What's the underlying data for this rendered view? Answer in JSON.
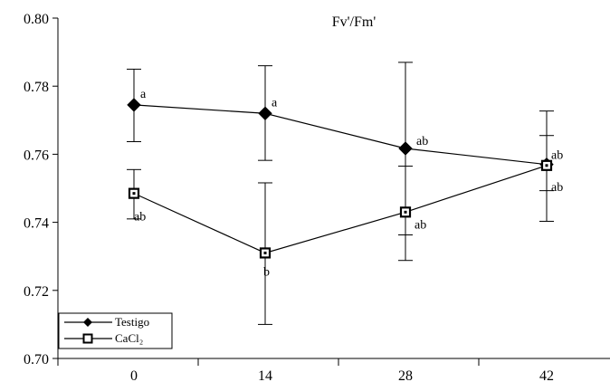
{
  "chart_data": {
    "type": "line",
    "title": "Fv'/Fm'",
    "xlabel": "",
    "ylabel": "",
    "categories": [
      "0",
      "14",
      "28",
      "42"
    ],
    "x": [
      0,
      14,
      28,
      42
    ],
    "ylim": [
      0.7,
      0.8
    ],
    "yticks": [
      0.7,
      0.72,
      0.74,
      0.76,
      0.78,
      0.8
    ],
    "ytick_labels": [
      "0.70",
      "0.72",
      "0.74",
      "0.76",
      "0.78",
      "0.80"
    ],
    "grid": false,
    "legend_position": "bottom-left",
    "series": [
      {
        "name": "Testigo",
        "marker": "filled-diamond",
        "values": [
          0.7745,
          0.772,
          0.7617,
          0.757
        ],
        "err_low": [
          0.7637,
          0.7582,
          0.7288,
          0.7403
        ],
        "err_high": [
          0.785,
          0.786,
          0.787,
          0.7727
        ],
        "labels": [
          "a",
          "a",
          "ab",
          "ab"
        ]
      },
      {
        "name": "CaCl₂",
        "marker": "open-square",
        "values": [
          0.7485,
          0.731,
          0.743,
          0.7567
        ],
        "err_low": [
          0.741,
          0.71,
          0.7363,
          0.7493
        ],
        "err_high": [
          0.7555,
          0.7516,
          0.7565,
          0.7655
        ],
        "labels": [
          "ab",
          "b",
          "ab",
          "ab"
        ]
      }
    ]
  }
}
